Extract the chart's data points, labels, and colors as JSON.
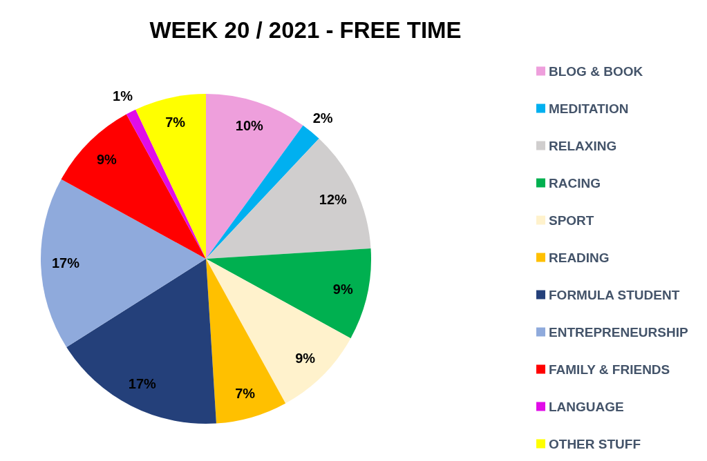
{
  "chart_data": {
    "type": "pie",
    "title": "WEEK 20 / 2021 - FREE TIME",
    "categories": [
      "BLOG & BOOK",
      "MEDITATION",
      "RELAXING",
      "RACING",
      "SPORT",
      "READING",
      "FORMULA STUDENT",
      "ENTREPRENEURSHIP",
      "FAMILY & FRIENDS",
      "LANGUAGE",
      "OTHER STUFF"
    ],
    "values": [
      10,
      2,
      12,
      9,
      9,
      7,
      17,
      17,
      9,
      1,
      7
    ],
    "value_labels": [
      "10%",
      "2%",
      "12%",
      "9%",
      "9%",
      "7%",
      "17%",
      "17%",
      "9%",
      "1%",
      "7%"
    ],
    "colors": [
      "#ee9fdc",
      "#00b0f0",
      "#d0cece",
      "#00b050",
      "#fff2cc",
      "#ffc000",
      "#24407a",
      "#8faadc",
      "#ff0000",
      "#e10ce8",
      "#ffff00"
    ],
    "legend": "right"
  }
}
